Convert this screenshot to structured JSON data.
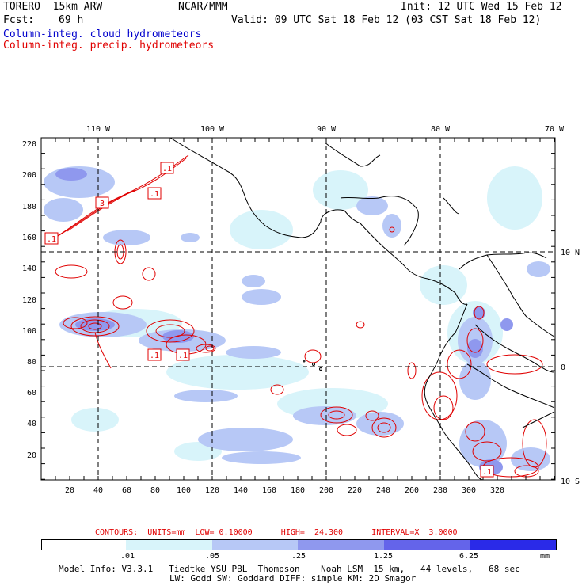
{
  "header": {
    "model_label": "TORERO  15km ARW",
    "center": "NCAR/MMM",
    "init": "Init: 12 UTC Wed 15 Feb 12",
    "fcst_label": "Fcst:",
    "fcst_value": "69 h",
    "valid": "Valid: 09 UTC Sat 18 Feb 12 (03 CST Sat 18 Feb 12)"
  },
  "legend": {
    "cloud": "Column-integ. cloud hydrometeors",
    "precip": "Column-integ. precip. hydrometeors",
    "cloud_color": "#0000cc",
    "precip_color": "#e00000"
  },
  "map": {
    "top_lon_labels": [
      "110 W",
      "100 W",
      "90 W",
      "80 W",
      "70 W"
    ],
    "right_lat_labels": [
      "10 N",
      "0",
      "10 S"
    ],
    "left_ticks": [
      "220",
      "200",
      "180",
      "160",
      "140",
      "120",
      "100",
      "80",
      "60",
      "40",
      "20"
    ],
    "bottom_ticks": [
      "20",
      "40",
      "60",
      "80",
      "100",
      "120",
      "140",
      "160",
      "180",
      "200",
      "220",
      "240",
      "260",
      "280",
      "300",
      "320"
    ],
    "contour_labels": [
      ".1",
      "3",
      ".1",
      ".1",
      ".1",
      ".1",
      ".1"
    ]
  },
  "contours_info": {
    "text": "CONTOURS:  UNITS=mm  LOW= 0.10000      HIGH=  24.300      INTERVAL=X  3.0000"
  },
  "colorbar": {
    "labels": [
      ".01",
      ".05",
      ".25",
      "1.25",
      "6.25",
      "mm"
    ],
    "colors": [
      "#ffffff",
      "#d8f4fa",
      "#b7c8f6",
      "#8f98ee",
      "#6464ea",
      "#2a2ae8"
    ]
  },
  "footer": {
    "line1": "Model Info: V3.3.1   Tiedtke YSU PBL  Thompson    Noah LSM  15 km,   44 levels,   68 sec",
    "line2": "LW: Godd SW: Goddard DIFF: simple KM: 2D Smagor"
  }
}
